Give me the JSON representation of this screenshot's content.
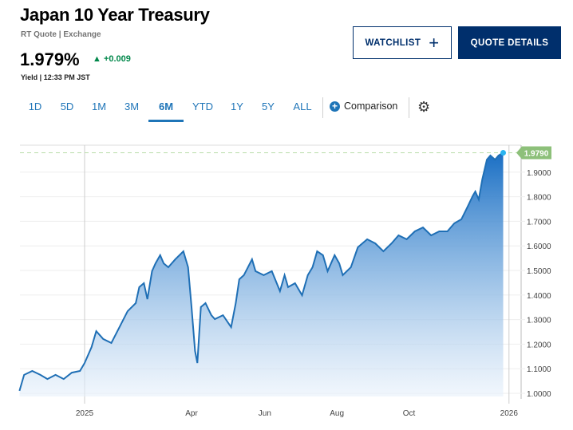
{
  "header": {
    "title": "Japan 10 Year Treasury",
    "subtitle": "RT Quote | Exchange",
    "price": "1.979%",
    "change": "+0.009",
    "change_color": "#00874a",
    "meta": "Yield | 12:33 PM JST"
  },
  "buttons": {
    "watchlist": "WATCHLIST",
    "watchlist_icon": "+",
    "quote_details": "QUOTE DETAILS"
  },
  "tabs": [
    {
      "label": "1D"
    },
    {
      "label": "5D"
    },
    {
      "label": "1M"
    },
    {
      "label": "3M"
    },
    {
      "label": "6M",
      "active": true
    },
    {
      "label": "YTD"
    },
    {
      "label": "1Y"
    },
    {
      "label": "5Y"
    },
    {
      "label": "ALL"
    }
  ],
  "comparison": {
    "label": "Comparison",
    "icon": "+"
  },
  "chart_data": {
    "type": "area",
    "x_unit": "days since 2025-01-01",
    "points": [
      [
        -56,
        1.01
      ],
      [
        -52,
        1.075
      ],
      [
        -45,
        1.091
      ],
      [
        -38,
        1.075
      ],
      [
        -32,
        1.058
      ],
      [
        -25,
        1.075
      ],
      [
        -18,
        1.058
      ],
      [
        -11,
        1.084
      ],
      [
        -4,
        1.091
      ],
      [
        0,
        1.123
      ],
      [
        6,
        1.188
      ],
      [
        10,
        1.253
      ],
      [
        16,
        1.221
      ],
      [
        23,
        1.205
      ],
      [
        30,
        1.269
      ],
      [
        37,
        1.334
      ],
      [
        44,
        1.367
      ],
      [
        47,
        1.432
      ],
      [
        51,
        1.448
      ],
      [
        54,
        1.383
      ],
      [
        58,
        1.497
      ],
      [
        61,
        1.529
      ],
      [
        65,
        1.562
      ],
      [
        68,
        1.529
      ],
      [
        72,
        1.513
      ],
      [
        78,
        1.545
      ],
      [
        85,
        1.578
      ],
      [
        89,
        1.513
      ],
      [
        92,
        1.351
      ],
      [
        95,
        1.172
      ],
      [
        97,
        1.123
      ],
      [
        100,
        1.351
      ],
      [
        104,
        1.367
      ],
      [
        109,
        1.318
      ],
      [
        112,
        1.302
      ],
      [
        119,
        1.318
      ],
      [
        126,
        1.269
      ],
      [
        130,
        1.367
      ],
      [
        133,
        1.464
      ],
      [
        137,
        1.481
      ],
      [
        144,
        1.545
      ],
      [
        147,
        1.497
      ],
      [
        154,
        1.481
      ],
      [
        161,
        1.497
      ],
      [
        168,
        1.416
      ],
      [
        172,
        1.481
      ],
      [
        175,
        1.432
      ],
      [
        181,
        1.448
      ],
      [
        187,
        1.399
      ],
      [
        192,
        1.481
      ],
      [
        196,
        1.513
      ],
      [
        200,
        1.578
      ],
      [
        205,
        1.562
      ],
      [
        209,
        1.497
      ],
      [
        215,
        1.562
      ],
      [
        219,
        1.529
      ],
      [
        222,
        1.481
      ],
      [
        229,
        1.513
      ],
      [
        235,
        1.594
      ],
      [
        243,
        1.627
      ],
      [
        250,
        1.61
      ],
      [
        257,
        1.578
      ],
      [
        264,
        1.61
      ],
      [
        270,
        1.643
      ],
      [
        277,
        1.627
      ],
      [
        284,
        1.659
      ],
      [
        291,
        1.675
      ],
      [
        298,
        1.643
      ],
      [
        305,
        1.659
      ],
      [
        312,
        1.659
      ],
      [
        318,
        1.692
      ],
      [
        324,
        1.708
      ],
      [
        329,
        1.756
      ],
      [
        334,
        1.805
      ],
      [
        336,
        1.821
      ],
      [
        339,
        1.789
      ],
      [
        342,
        1.87
      ],
      [
        346,
        1.951
      ],
      [
        349,
        1.968
      ],
      [
        353,
        1.951
      ],
      [
        356,
        1.968
      ],
      [
        360,
        1.979
      ]
    ],
    "last_value_label": "1.9790",
    "last_value": 1.979,
    "y_ticks": [
      {
        "v": 1.0,
        "label": "1.0000"
      },
      {
        "v": 1.1,
        "label": "1.1000"
      },
      {
        "v": 1.2,
        "label": "1.2000"
      },
      {
        "v": 1.3,
        "label": "1.3000"
      },
      {
        "v": 1.4,
        "label": "1.4000"
      },
      {
        "v": 1.5,
        "label": "1.5000"
      },
      {
        "v": 1.6,
        "label": "1.6000"
      },
      {
        "v": 1.7,
        "label": "1.7000"
      },
      {
        "v": 1.8,
        "label": "1.8000"
      },
      {
        "v": 1.9,
        "label": "1.9000"
      }
    ],
    "x_ticks": [
      {
        "d": 0,
        "label": "2025"
      },
      {
        "d": 92,
        "label": "Apr"
      },
      {
        "d": 155,
        "label": "Jun"
      },
      {
        "d": 217,
        "label": "Aug"
      },
      {
        "d": 279,
        "label": "Oct"
      },
      {
        "d": 365,
        "label": "2026"
      }
    ],
    "xlim": [
      -56,
      377
    ],
    "ylim": [
      0.97,
      2.01
    ],
    "line_color": "#1f6fb5",
    "label_color": "#8dc07a"
  }
}
